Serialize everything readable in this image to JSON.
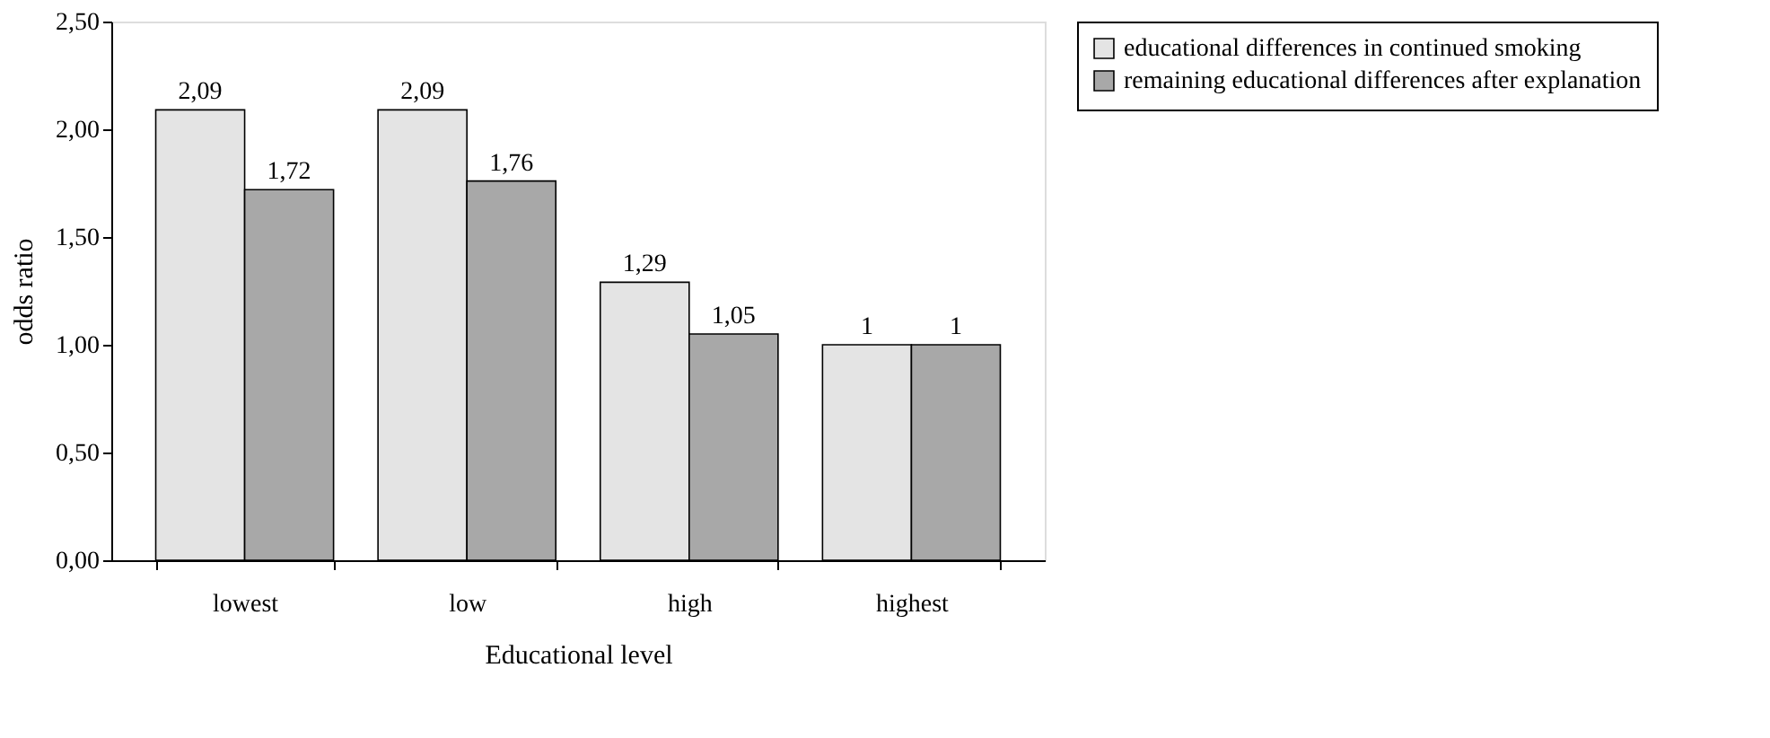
{
  "chart_data": {
    "type": "bar",
    "xlabel": "Educational level",
    "ylabel": "odds ratio",
    "categories": [
      "lowest",
      "low",
      "high",
      "highest"
    ],
    "series": [
      {
        "name": "educational differences in continued smoking",
        "color": "#e4e4e4",
        "values": [
          2.09,
          2.09,
          1.29,
          1.0
        ],
        "value_labels": [
          "2,09",
          "2,09",
          "1,29",
          "1"
        ]
      },
      {
        "name": "remaining educational differences after explanation",
        "color": "#a8a8a8",
        "values": [
          1.72,
          1.76,
          1.05,
          1.0
        ],
        "value_labels": [
          "1,72",
          "1,76",
          "1,05",
          "1"
        ]
      }
    ],
    "ylim": [
      0,
      2.5
    ],
    "yticks": [
      {
        "value": 0,
        "label": "0,00"
      },
      {
        "value": 0.5,
        "label": "0,50"
      },
      {
        "value": 1.0,
        "label": "1,00"
      },
      {
        "value": 1.5,
        "label": "1,50"
      },
      {
        "value": 2.0,
        "label": "2,00"
      },
      {
        "value": 2.5,
        "label": "2,50"
      }
    ],
    "grid": false,
    "legend": "right"
  }
}
